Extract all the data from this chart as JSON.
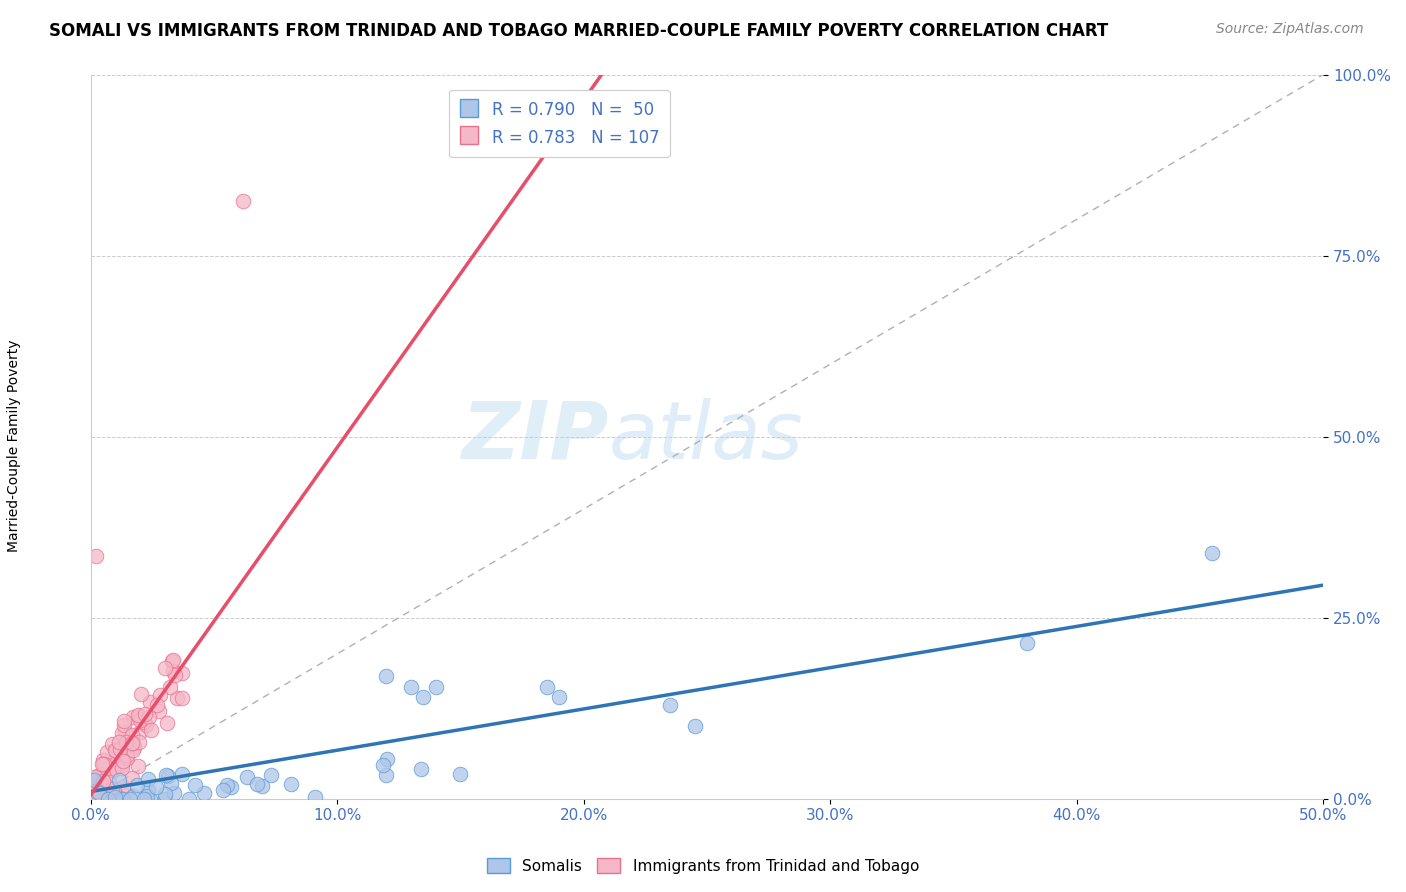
{
  "title": "SOMALI VS IMMIGRANTS FROM TRINIDAD AND TOBAGO MARRIED-COUPLE FAMILY POVERTY CORRELATION CHART",
  "source": "Source: ZipAtlas.com",
  "xlabel_ticks": [
    "0.0%",
    "10.0%",
    "20.0%",
    "30.0%",
    "40.0%",
    "50.0%"
  ],
  "ylabel_ticks": [
    "0.0%",
    "25.0%",
    "50.0%",
    "75.0%",
    "100.0%"
  ],
  "xlim": [
    0,
    0.5
  ],
  "ylim": [
    0,
    1.0
  ],
  "watermark_zip": "ZIP",
  "watermark_atlas": "atlas",
  "legend_r1": "R = 0.790",
  "legend_n1": "N =  50",
  "legend_r2": "R = 0.783",
  "legend_n2": "N = 107",
  "series1_color": "#aec6e8",
  "series1_edge": "#5b9bd5",
  "series1_line": "#2e75b6",
  "series2_color": "#f4b8c8",
  "series2_edge": "#e87090",
  "series2_line": "#e84e6a",
  "ref_line_color": "#b0b0b0",
  "legend_label1": "Somalis",
  "legend_label2": "Immigrants from Trinidad and Tobago",
  "title_fontsize": 12,
  "source_fontsize": 10,
  "label_fontsize": 10,
  "tick_fontsize": 11,
  "blue_trend_slope": 0.57,
  "blue_trend_intercept": 0.02,
  "pink_trend_slope": 4.8,
  "pink_trend_intercept": 0.005
}
